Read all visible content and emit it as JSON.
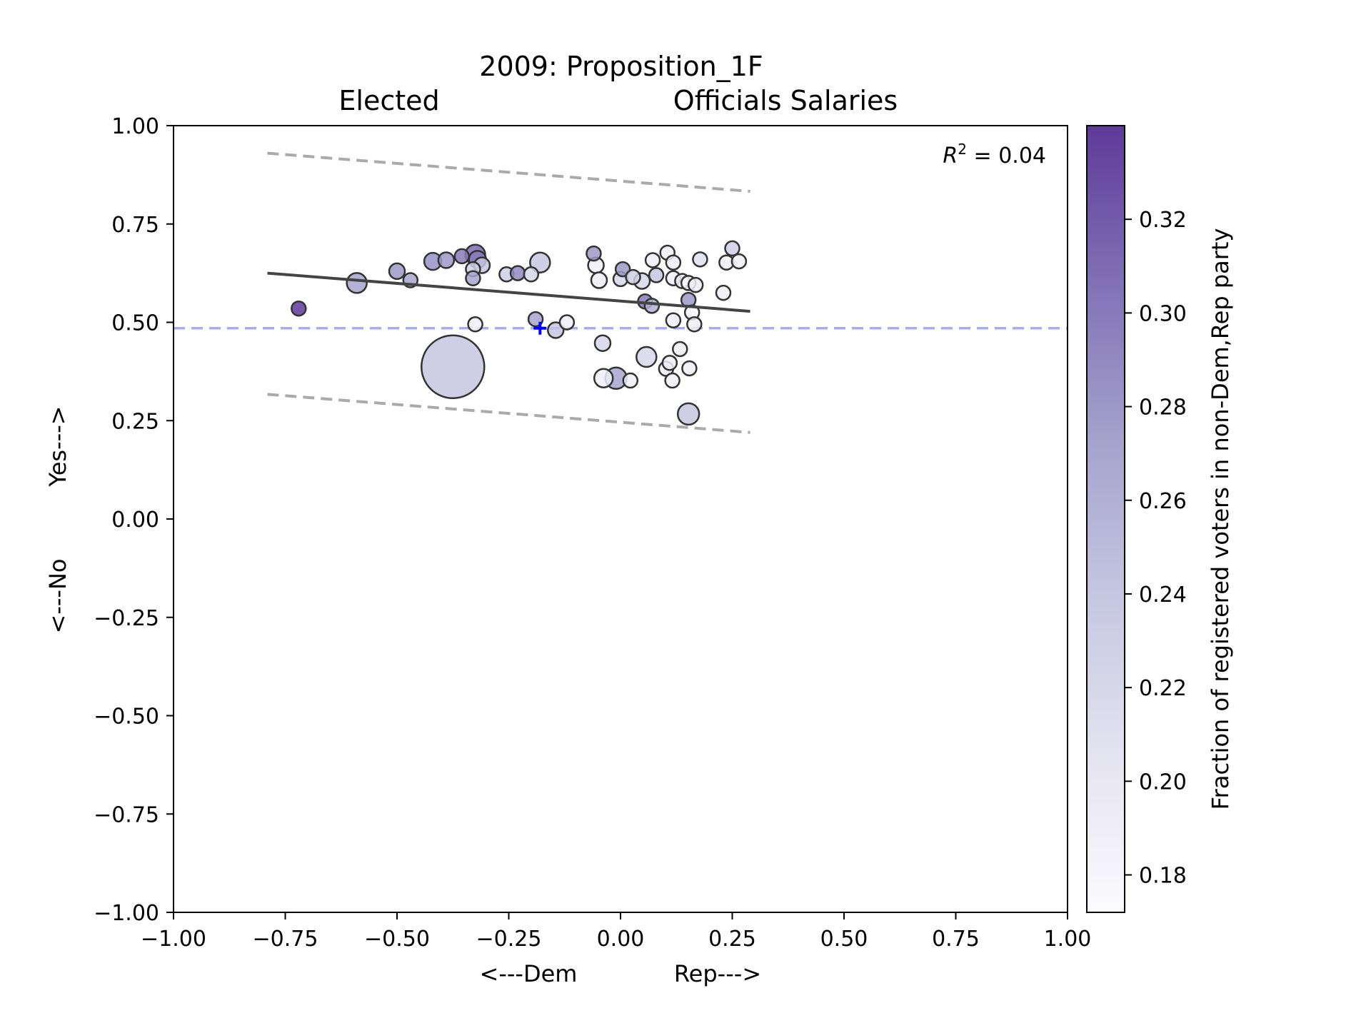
{
  "chart_data": {
    "type": "scatter",
    "title_line1": "2009: Proposition_1F",
    "title_line2_left": "Elected",
    "title_line2_right": "Officials Salaries",
    "xlabel_left": "<---Dem",
    "xlabel_right": "Rep--->",
    "ylabel_bottom": "<---No",
    "ylabel_top": "Yes--->",
    "xlim": [
      -1.0,
      1.0
    ],
    "ylim": [
      -1.0,
      1.0
    ],
    "xticks": [
      "−1.00",
      "−0.75",
      "−0.50",
      "−0.25",
      "0.00",
      "0.25",
      "0.50",
      "0.75",
      "1.00"
    ],
    "yticks": [
      "−1.00",
      "−0.75",
      "−0.50",
      "−0.25",
      "0.00",
      "0.25",
      "0.50",
      "0.75",
      "1.00"
    ],
    "r2_label_prefix": "R",
    "r2_label_exp": "2",
    "r2_label_value": " = 0.04",
    "statewide_result": {
      "x": -0.18,
      "y": 0.485,
      "color": "#0000ff"
    },
    "reference_line_y": 0.485,
    "reference_line_color": "#aaaaee",
    "regression": {
      "x": [
        -0.79,
        0.29
      ],
      "y": [
        0.625,
        0.528
      ],
      "color": "#444444"
    },
    "band_upper": {
      "x": [
        -0.79,
        0.29
      ],
      "y": [
        0.93,
        0.833
      ],
      "color": "#aaaaaa"
    },
    "band_lower": {
      "x": [
        -0.79,
        0.29
      ],
      "y": [
        0.317,
        0.22
      ],
      "color": "#aaaaaa"
    },
    "colorbar": {
      "label": "Fraction of registered voters in non-Dem,Rep party",
      "min": 0.172,
      "max": 0.34,
      "ticks": [
        "0.18",
        "0.20",
        "0.22",
        "0.24",
        "0.26",
        "0.28",
        "0.30",
        "0.32"
      ],
      "tick_values": [
        0.18,
        0.2,
        0.22,
        0.24,
        0.26,
        0.28,
        0.3,
        0.32
      ],
      "color_low": "#fcfbfd",
      "color_high": "#54278f"
    },
    "points": [
      {
        "x": -0.72,
        "y": 0.535,
        "size": 1.0,
        "c": 0.34
      },
      {
        "x": -0.59,
        "y": 0.6,
        "size": 1.4,
        "c": 0.27
      },
      {
        "x": -0.5,
        "y": 0.63,
        "size": 1.1,
        "c": 0.28
      },
      {
        "x": -0.47,
        "y": 0.607,
        "size": 1.0,
        "c": 0.27
      },
      {
        "x": -0.42,
        "y": 0.655,
        "size": 1.2,
        "c": 0.285
      },
      {
        "x": -0.39,
        "y": 0.658,
        "size": 1.1,
        "c": 0.28
      },
      {
        "x": -0.355,
        "y": 0.668,
        "size": 1.0,
        "c": 0.3
      },
      {
        "x": -0.325,
        "y": 0.672,
        "size": 1.4,
        "c": 0.31
      },
      {
        "x": -0.32,
        "y": 0.66,
        "size": 1.2,
        "c": 0.3
      },
      {
        "x": -0.31,
        "y": 0.645,
        "size": 1.1,
        "c": 0.24
      },
      {
        "x": -0.33,
        "y": 0.635,
        "size": 1.0,
        "c": 0.23
      },
      {
        "x": -0.33,
        "y": 0.612,
        "size": 1.0,
        "c": 0.27
      },
      {
        "x": -0.255,
        "y": 0.622,
        "size": 1.0,
        "c": 0.23
      },
      {
        "x": -0.23,
        "y": 0.625,
        "size": 1.0,
        "c": 0.29
      },
      {
        "x": -0.2,
        "y": 0.622,
        "size": 1.0,
        "c": 0.22
      },
      {
        "x": -0.18,
        "y": 0.652,
        "size": 1.4,
        "c": 0.24
      },
      {
        "x": -0.325,
        "y": 0.495,
        "size": 1.0,
        "c": 0.19
      },
      {
        "x": -0.19,
        "y": 0.508,
        "size": 1.0,
        "c": 0.27
      },
      {
        "x": -0.145,
        "y": 0.48,
        "size": 1.1,
        "c": 0.24
      },
      {
        "x": -0.12,
        "y": 0.5,
        "size": 1.0,
        "c": 0.19
      },
      {
        "x": -0.375,
        "y": 0.387,
        "size": 4.4,
        "c": 0.24
      },
      {
        "x": -0.06,
        "y": 0.675,
        "size": 1.0,
        "c": 0.28
      },
      {
        "x": -0.055,
        "y": 0.645,
        "size": 1.1,
        "c": 0.19
      },
      {
        "x": -0.048,
        "y": 0.607,
        "size": 1.1,
        "c": 0.19
      },
      {
        "x": 0.0,
        "y": 0.61,
        "size": 1.0,
        "c": 0.22
      },
      {
        "x": 0.005,
        "y": 0.635,
        "size": 1.0,
        "c": 0.28
      },
      {
        "x": 0.028,
        "y": 0.615,
        "size": 1.0,
        "c": 0.23
      },
      {
        "x": 0.048,
        "y": 0.605,
        "size": 1.1,
        "c": 0.22
      },
      {
        "x": 0.055,
        "y": 0.553,
        "size": 1.0,
        "c": 0.3
      },
      {
        "x": 0.07,
        "y": 0.542,
        "size": 1.0,
        "c": 0.26
      },
      {
        "x": 0.072,
        "y": 0.658,
        "size": 1.0,
        "c": 0.19
      },
      {
        "x": 0.08,
        "y": 0.62,
        "size": 1.0,
        "c": 0.24
      },
      {
        "x": 0.105,
        "y": 0.677,
        "size": 1.0,
        "c": 0.19
      },
      {
        "x": 0.118,
        "y": 0.652,
        "size": 1.0,
        "c": 0.19
      },
      {
        "x": 0.118,
        "y": 0.612,
        "size": 1.0,
        "c": 0.19
      },
      {
        "x": 0.138,
        "y": 0.605,
        "size": 1.0,
        "c": 0.19
      },
      {
        "x": 0.152,
        "y": 0.6,
        "size": 1.0,
        "c": 0.18
      },
      {
        "x": 0.168,
        "y": 0.595,
        "size": 1.0,
        "c": 0.19
      },
      {
        "x": 0.152,
        "y": 0.557,
        "size": 1.0,
        "c": 0.28
      },
      {
        "x": 0.16,
        "y": 0.525,
        "size": 1.0,
        "c": 0.18
      },
      {
        "x": 0.165,
        "y": 0.495,
        "size": 1.0,
        "c": 0.19
      },
      {
        "x": 0.118,
        "y": 0.505,
        "size": 1.0,
        "c": 0.19
      },
      {
        "x": 0.178,
        "y": 0.66,
        "size": 1.0,
        "c": 0.21
      },
      {
        "x": 0.23,
        "y": 0.575,
        "size": 1.0,
        "c": 0.19
      },
      {
        "x": 0.237,
        "y": 0.652,
        "size": 1.0,
        "c": 0.19
      },
      {
        "x": 0.25,
        "y": 0.688,
        "size": 1.0,
        "c": 0.23
      },
      {
        "x": 0.265,
        "y": 0.655,
        "size": 1.0,
        "c": 0.19
      },
      {
        "x": -0.04,
        "y": 0.447,
        "size": 1.1,
        "c": 0.22
      },
      {
        "x": -0.038,
        "y": 0.358,
        "size": 1.3,
        "c": 0.19
      },
      {
        "x": -0.01,
        "y": 0.358,
        "size": 1.5,
        "c": 0.27
      },
      {
        "x": 0.022,
        "y": 0.352,
        "size": 1.0,
        "c": 0.19
      },
      {
        "x": 0.058,
        "y": 0.412,
        "size": 1.4,
        "c": 0.22
      },
      {
        "x": 0.102,
        "y": 0.382,
        "size": 1.0,
        "c": 0.19
      },
      {
        "x": 0.11,
        "y": 0.397,
        "size": 1.0,
        "c": 0.19
      },
      {
        "x": 0.116,
        "y": 0.352,
        "size": 1.0,
        "c": 0.19
      },
      {
        "x": 0.133,
        "y": 0.432,
        "size": 1.0,
        "c": 0.19
      },
      {
        "x": 0.154,
        "y": 0.383,
        "size": 1.0,
        "c": 0.19
      },
      {
        "x": 0.152,
        "y": 0.267,
        "size": 1.5,
        "c": 0.24
      }
    ]
  }
}
